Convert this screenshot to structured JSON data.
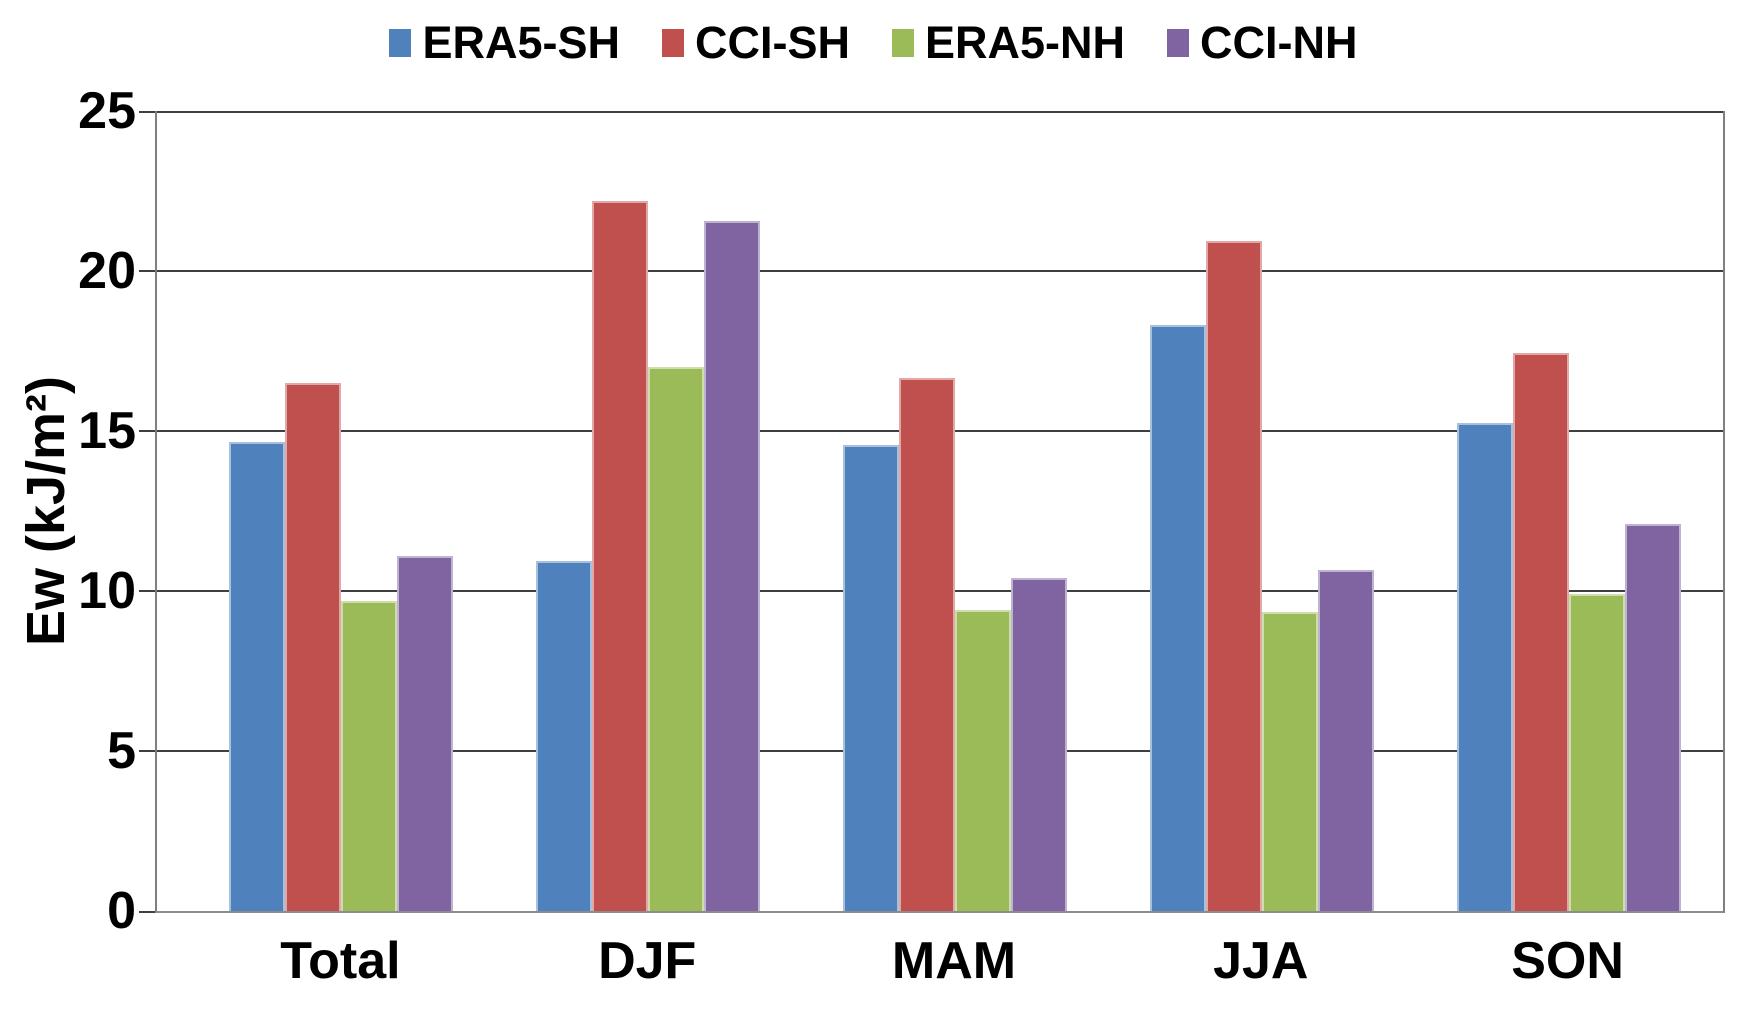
{
  "chart_data": {
    "type": "bar",
    "title": "",
    "xlabel": "",
    "ylabel": "Ew (kJ/m²)",
    "ylim": [
      0,
      25
    ],
    "yticks": [
      0,
      5,
      10,
      15,
      20,
      25
    ],
    "ytick_labels": [
      "0",
      "5",
      "10",
      "15",
      "20",
      "25"
    ],
    "grid": "horizontal",
    "legend_position": "top-center",
    "categories": [
      "Total",
      "DJF",
      "MAM",
      "JJA",
      "SON"
    ],
    "series": [
      {
        "name": "ERA5-SH",
        "color": "#4F81BD",
        "values": [
          14.65,
          10.95,
          14.55,
          18.3,
          15.25
        ]
      },
      {
        "name": "CCI-SH",
        "color": "#C0504D",
        "values": [
          16.5,
          22.2,
          16.65,
          20.95,
          17.45
        ]
      },
      {
        "name": "ERA5-NH",
        "color": "#9BBB59",
        "values": [
          9.7,
          17.0,
          9.4,
          9.35,
          9.9
        ]
      },
      {
        "name": "CCI-NH",
        "color": "#8064A2",
        "values": [
          11.1,
          21.55,
          10.4,
          10.65,
          12.1
        ]
      }
    ],
    "style": {
      "gridline_color": "#3F3F3F",
      "axis_color": "#7F7F7F",
      "text_color": "#000000",
      "background": "#FFFFFF"
    }
  }
}
